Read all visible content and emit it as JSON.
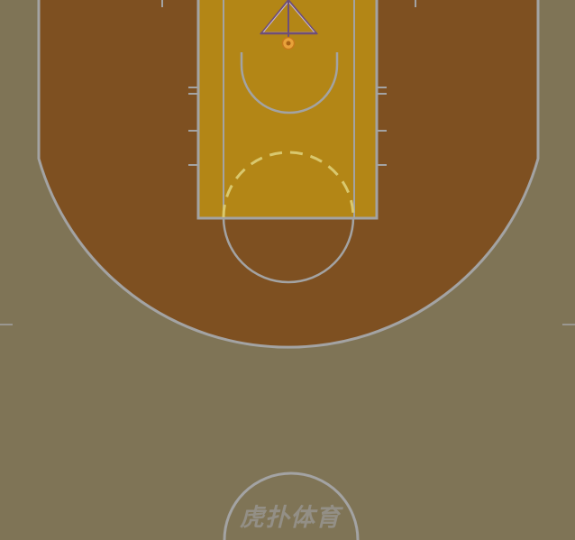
{
  "court": {
    "colors": {
      "floor": "#7f7456",
      "three_point_area": "#7e5021",
      "paint": "#b38616",
      "lines": "#a3a3a3",
      "restricted_arc": "#d9c86e",
      "hoop": "#e8a23a",
      "backboard_frame": "#6e4e78",
      "watermark": "#938f86"
    },
    "watermark": {
      "text": "虎扑体育",
      "icon": "hupu-logo-icon"
    }
  }
}
